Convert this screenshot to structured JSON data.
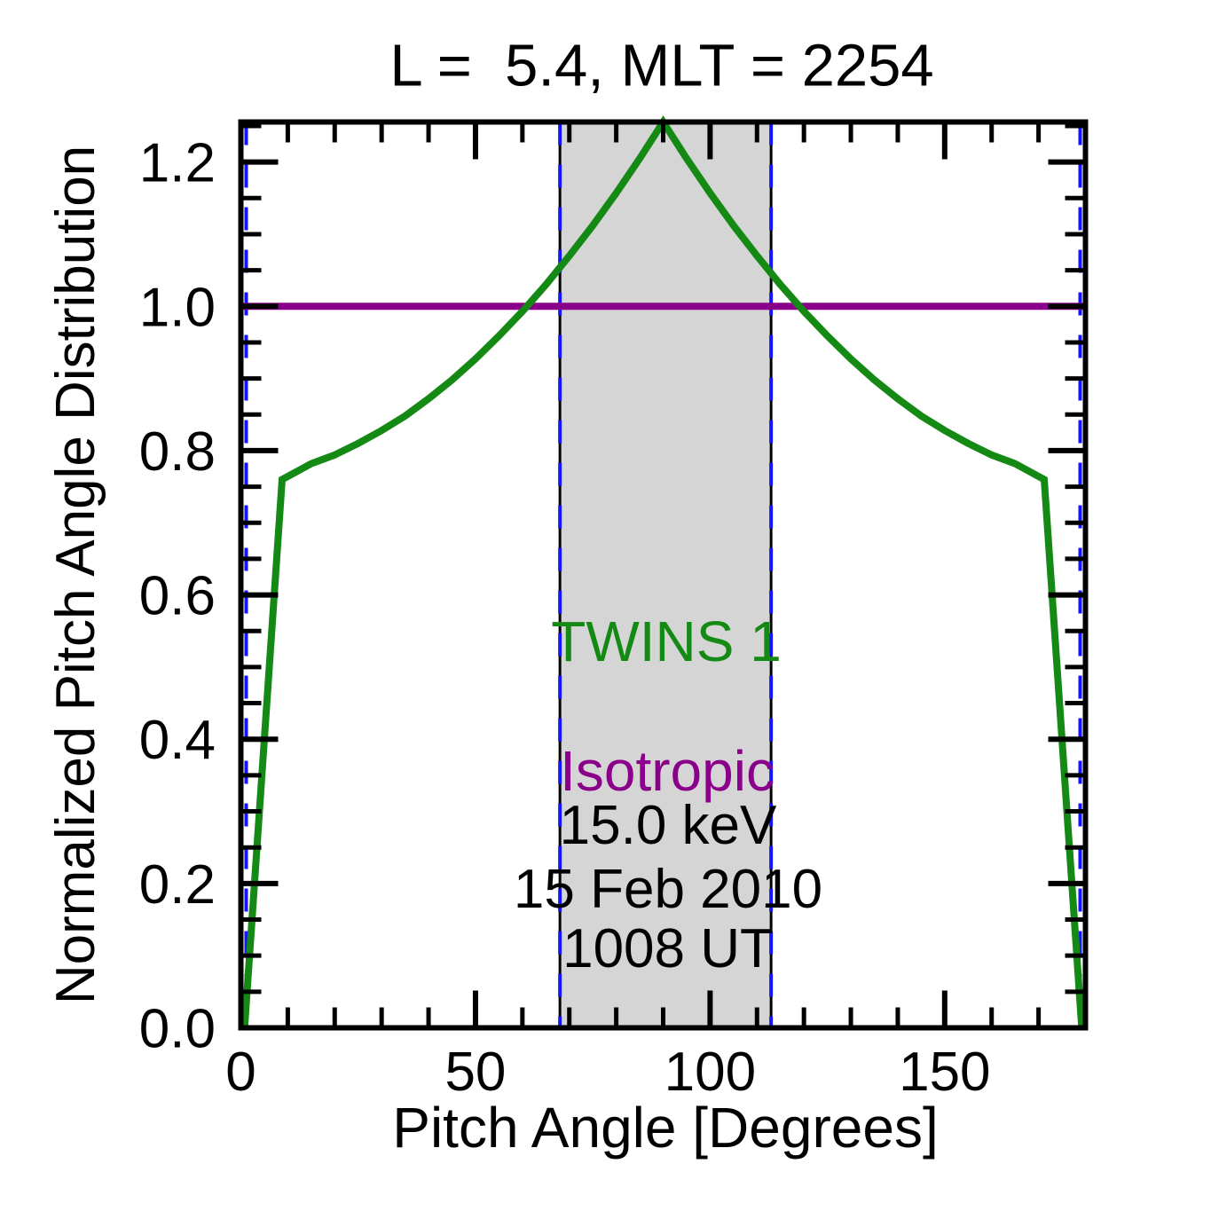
{
  "title": "L =  5.4, MLT = 2254",
  "axes": {
    "xlabel": "Pitch Angle [Degrees]",
    "ylabel": "Normalized Pitch Angle Distribution",
    "xlim": [
      0,
      180
    ],
    "ylim": [
      0,
      1.2555
    ],
    "x_major_ticks": [
      0,
      50,
      100,
      150
    ],
    "x_tick_labels": [
      "0",
      "50",
      "100",
      "150"
    ],
    "x_minor_step": 10,
    "y_major_ticks": [
      0,
      0.2,
      0.4,
      0.6,
      0.8,
      1.0,
      1.2
    ],
    "y_tick_labels": [
      "0.0",
      "0.2",
      "0.4",
      "0.6",
      "0.8",
      "1.0",
      "1.2"
    ],
    "y_minor_step": 0.05
  },
  "annotations": {
    "series1_label": "TWINS 1",
    "series2_label": "Isotropic",
    "energy": "15.0 keV",
    "date": "15 Feb 2010",
    "time": "1008 UT"
  },
  "colors": {
    "twins1_green": "#148a14",
    "isotropic_purple": "#8b008b",
    "band_gray": "#d5d5d5",
    "dashed_blue": "#1414ff",
    "axis_black": "#000000"
  },
  "chart_data": {
    "type": "line",
    "title": "L =  5.4, MLT = 2254",
    "xlabel": "Pitch Angle [Degrees]",
    "ylabel": "Normalized Pitch Angle Distribution",
    "xlim": [
      0,
      180
    ],
    "ylim": [
      0,
      1.2555
    ],
    "grid": false,
    "legend_position": "center-inside",
    "shaded_band_deg": [
      68,
      113
    ],
    "dashed_vlines_deg": [
      0,
      68,
      113,
      180
    ],
    "series": [
      {
        "name": "TWINS 1",
        "color": "#148a14",
        "x": [
          0.8,
          8.8,
          15,
          20,
          25,
          30,
          35,
          40,
          45,
          50,
          55,
          60,
          65,
          70,
          75,
          80,
          85,
          90,
          95,
          100,
          105,
          110,
          115,
          120,
          125,
          130,
          135,
          140,
          145,
          150,
          155,
          160,
          165,
          171.2,
          179.2
        ],
        "y": [
          0,
          0.76,
          0.782,
          0.794,
          0.81,
          0.828,
          0.848,
          0.872,
          0.898,
          0.927,
          0.959,
          0.993,
          1.03,
          1.07,
          1.112,
          1.157,
          1.205,
          1.2555,
          1.205,
          1.157,
          1.112,
          1.07,
          1.03,
          0.993,
          0.959,
          0.927,
          0.898,
          0.872,
          0.848,
          0.828,
          0.81,
          0.794,
          0.782,
          0.76,
          0
        ]
      },
      {
        "name": "Isotropic",
        "color": "#8b008b",
        "x": [
          0,
          180
        ],
        "y": [
          1.0,
          1.0
        ]
      }
    ]
  }
}
